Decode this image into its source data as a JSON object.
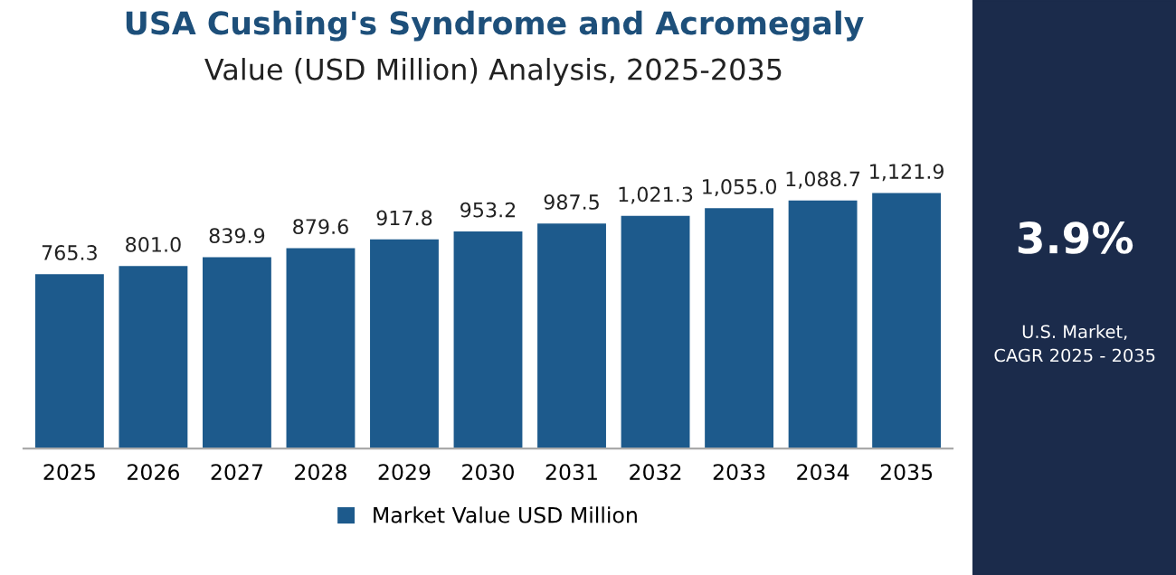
{
  "chart_data": {
    "type": "bar",
    "title": "USA Cushing's Syndrome and Acromegaly",
    "subtitle": "Value (USD Million) Analysis, 2025-2035",
    "categories": [
      "2025",
      "2026",
      "2027",
      "2028",
      "2029",
      "2030",
      "2031",
      "2032",
      "2033",
      "2034",
      "2035"
    ],
    "series": [
      {
        "name": "Market Value USD Million",
        "color": "#1d5a8c",
        "values": [
          765.3,
          801.0,
          839.9,
          879.6,
          917.8,
          953.2,
          987.5,
          1021.3,
          1055.0,
          1088.7,
          1121.9
        ],
        "value_labels": [
          "765.3",
          "801.0",
          "839.9",
          "879.6",
          "917.8",
          "953.2",
          "987.5",
          "1,021.3",
          "1,055.0",
          "1,088.7",
          "1,121.9"
        ]
      }
    ],
    "annotations": [
      "3.9%",
      "U.S. Market,\nCAGR 2025 - 2035"
    ],
    "legend": "bottom",
    "grid": false
  }
}
